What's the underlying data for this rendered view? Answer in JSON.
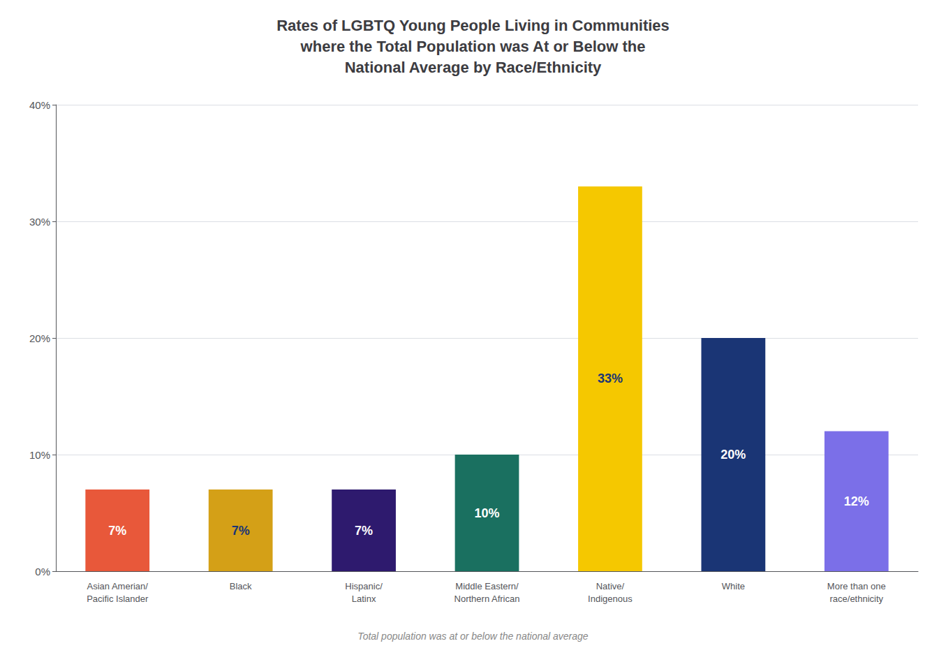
{
  "chart_data": {
    "type": "bar",
    "title": "Rates of LGBTQ Young People Living in Communities\nwhere the Total Population was At or Below the\nNational Average by Race/Ethnicity",
    "categories": [
      "Asian Amerian/\nPacific Islander",
      "Black",
      "Hispanic/\nLatinx",
      "Middle Eastern/\nNorthern African",
      "Native/\nIndigenous",
      "White",
      "More than one\nrace/ethnicity"
    ],
    "values": [
      7,
      7,
      7,
      10,
      33,
      20,
      12
    ],
    "value_labels": [
      "7%",
      "7%",
      "7%",
      "10%",
      "33%",
      "20%",
      "12%"
    ],
    "data_labels": true,
    "colors": [
      "#E8583A",
      "#D4A017",
      "#2E1A6E",
      "#1A7060",
      "#F5C800",
      "#1A3575",
      "#7B6FE8"
    ],
    "ylim": [
      0,
      40
    ],
    "yticks": [
      {
        "value": 0,
        "label": "0%"
      },
      {
        "value": 10,
        "label": "10%"
      },
      {
        "value": 20,
        "label": "20%"
      },
      {
        "value": 30,
        "label": "30%"
      },
      {
        "value": 40,
        "label": "40%"
      }
    ],
    "grid": true,
    "annotations": [
      "Total population was at or below the national average"
    ]
  }
}
